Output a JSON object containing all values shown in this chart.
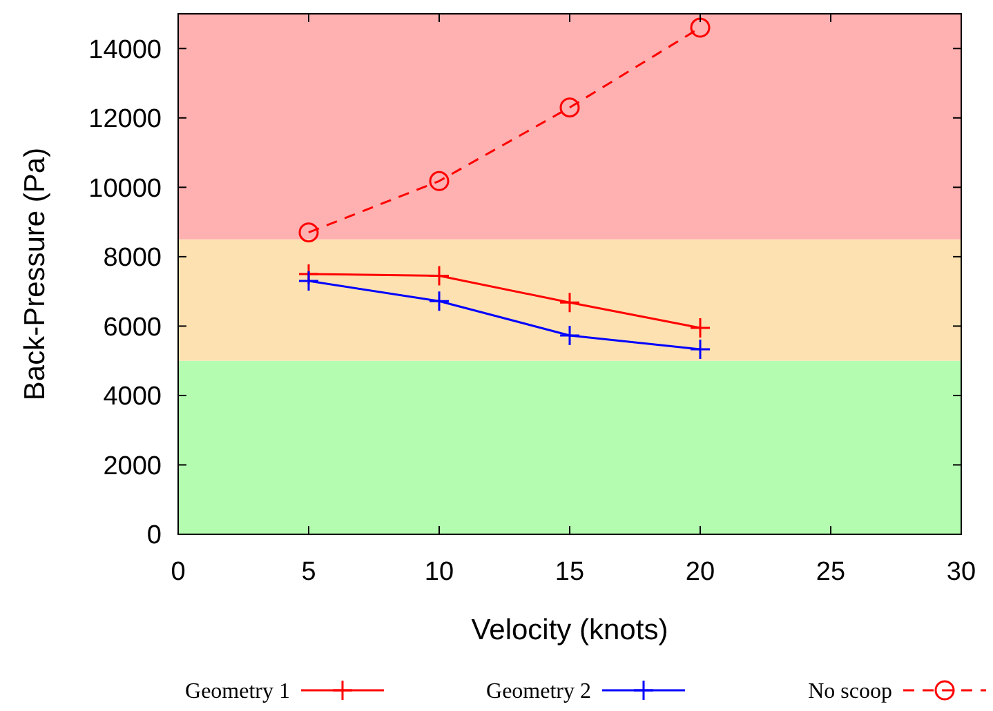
{
  "chart_data": {
    "type": "line",
    "xlabel": "Velocity (knots)",
    "ylabel": "Back-Pressure (Pa)",
    "x": [
      5,
      10,
      15,
      20
    ],
    "series": [
      {
        "name": "Geometry 1",
        "color": "#ff0000",
        "values": [
          7500,
          7450,
          6680,
          5950
        ],
        "marker": "cross",
        "line_style": "solid"
      },
      {
        "name": "Geometry 2",
        "color": "#0000ff",
        "values": [
          7300,
          6720,
          5730,
          5330
        ],
        "marker": "cross",
        "line_style": "solid"
      },
      {
        "name": "No scoop",
        "color": "#ff0000",
        "values": [
          8700,
          10180,
          12300,
          14600
        ],
        "marker": "circle",
        "line_style": "dashed"
      }
    ],
    "xlim": [
      0,
      30
    ],
    "xticks": [
      0,
      5,
      10,
      15,
      20,
      25,
      30
    ],
    "ylim": [
      0,
      15000
    ],
    "yticks": [
      0,
      2000,
      4000,
      6000,
      8000,
      10000,
      12000,
      14000
    ],
    "bands": [
      {
        "axis": "y",
        "from": 0,
        "to": 5000,
        "color": "#b4fcb0"
      },
      {
        "axis": "y",
        "from": 5000,
        "to": 8500,
        "color": "#fde1b1"
      },
      {
        "axis": "y",
        "from": 8500,
        "to": 15000,
        "color": "#ffb0b0"
      }
    ],
    "grid": false,
    "legend": "bottom"
  }
}
